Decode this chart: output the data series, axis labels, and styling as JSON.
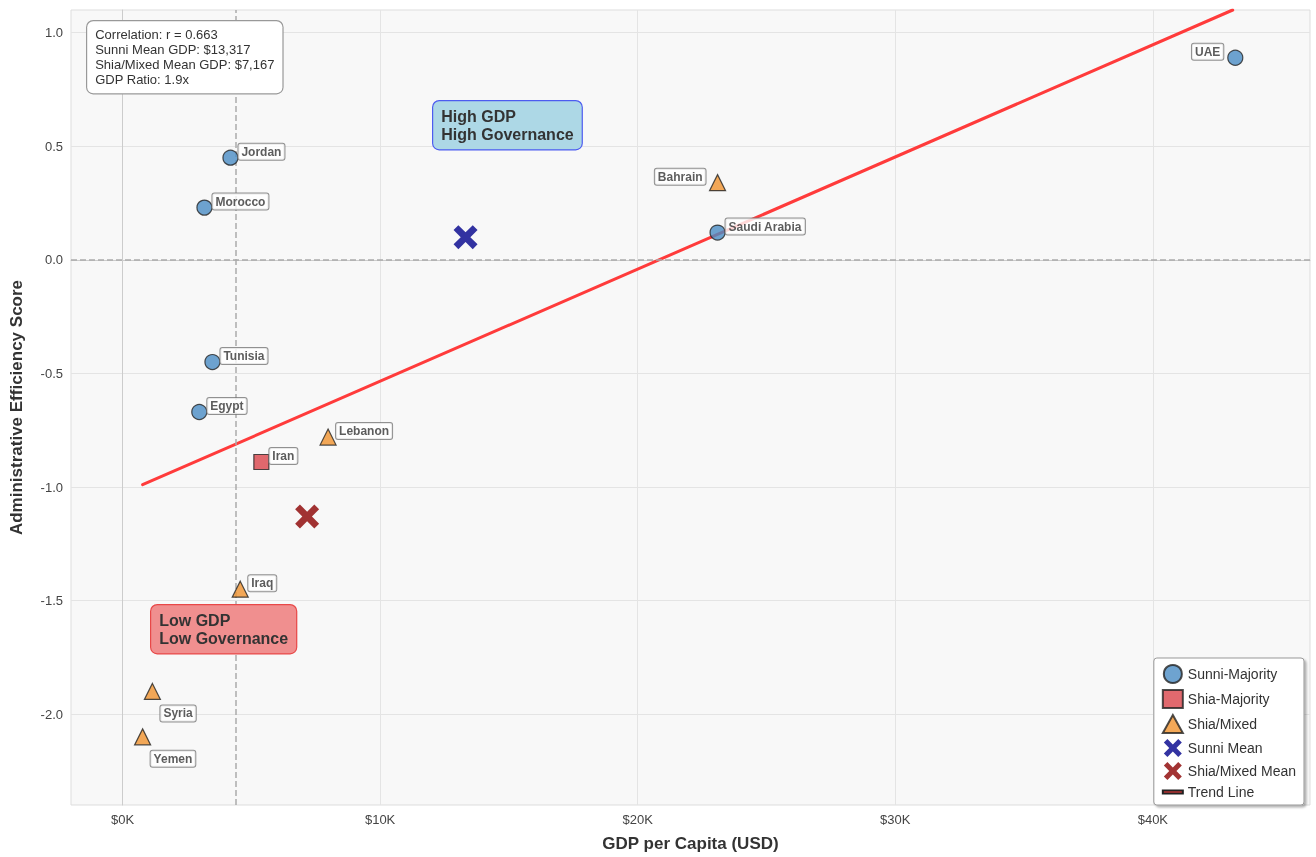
{
  "chart_data": {
    "type": "scatter",
    "xlabel": "GDP per Capita (USD)",
    "ylabel": "Administrative Efficiency Score",
    "xlim": [
      -2000,
      46100
    ],
    "ylim": [
      -2.4,
      1.1
    ],
    "xticks": [
      {
        "value": 0,
        "label": "$0K"
      },
      {
        "value": 10000,
        "label": "$10K"
      },
      {
        "value": 20000,
        "label": "$20K"
      },
      {
        "value": 30000,
        "label": "$30K"
      },
      {
        "value": 40000,
        "label": "$40K"
      }
    ],
    "yticks": [
      {
        "value": -2,
        "label": "-2.0"
      },
      -1.5,
      {
        "value": -1,
        "label": "-1.0"
      },
      -0.5,
      {
        "value": 0,
        "label": "0.0"
      },
      0.5,
      {
        "value": 1,
        "label": "1.0"
      }
    ],
    "grid": true,
    "legend": "bottom right",
    "series": [
      {
        "name": "Sunni-Majority",
        "color": "#4a8cc4",
        "marker": "circle",
        "x": [
          43200,
          4190,
          3180,
          23100,
          3490,
          2980
        ],
        "values": [
          0.89,
          0.45,
          0.23,
          0.12,
          -0.45,
          -0.67
        ],
        "value_labels": [
          "UAE",
          "Jordan",
          "Morocco",
          "Saudi Arabia",
          "Tunisia",
          "Egypt"
        ]
      },
      {
        "name": "Shia-Majority",
        "color": "#d9434a",
        "marker": "square",
        "x": [
          5390
        ],
        "values": [
          -0.89
        ],
        "value_labels": [
          "Iran"
        ]
      },
      {
        "name": "Shia/Mixed",
        "color": "#f0922e",
        "marker": "triangle",
        "x": [
          23100,
          7980,
          4570,
          1160,
          780
        ],
        "values": [
          0.34,
          -0.78,
          -1.45,
          -1.9,
          -2.1
        ],
        "value_labels": [
          "Bahrain",
          "Lebanon",
          "Iraq",
          "Syria",
          "Yemen"
        ]
      },
      {
        "name": "Sunni Mean",
        "color": "#00008b",
        "marker": "cross",
        "x": [
          13317
        ],
        "values": [
          0.1
        ]
      },
      {
        "name": "Shia/Mixed Mean",
        "color": "#8b0000",
        "marker": "cross",
        "x": [
          7167
        ],
        "values": [
          -1.13
        ]
      },
      {
        "name": "Trend Line",
        "type": "line",
        "color": "#ff3b3b",
        "marker": "none",
        "x": [
          780,
          43100
        ],
        "values": [
          -0.99,
          1.1
        ]
      }
    ],
    "ref_lines": [
      {
        "axis": "y",
        "value": 0,
        "color": "#aaaaaa",
        "line_style": "dashed"
      },
      {
        "axis": "x",
        "value": 4380,
        "color": "#aaaaaa",
        "line_style": "dashed"
      }
    ],
    "annotations": [
      "Correlation: r = 0.663\nSunni Mean GDP: $13,317\nShia/Mixed Mean GDP: $7,167\nGDP Ratio: 1.9x",
      "High GDP\nHigh Governance",
      "Low GDP\nLow Governance"
    ]
  }
}
